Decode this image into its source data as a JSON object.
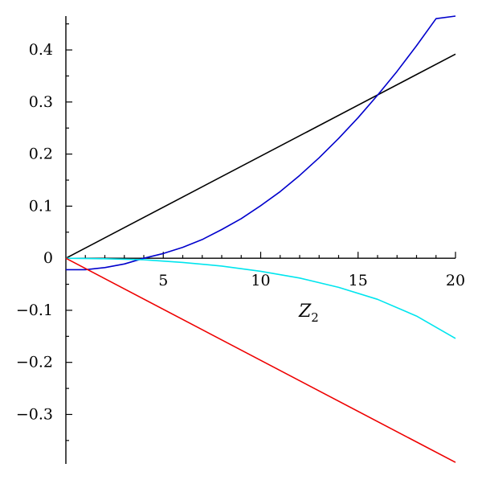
{
  "chart_data": {
    "type": "line",
    "title": "",
    "xlabel": "Z",
    "xlabel_subscript": "2",
    "ylabel": "",
    "xlim": [
      0,
      20
    ],
    "ylim": [
      -0.395,
      0.465
    ],
    "xticks": [
      5,
      10,
      15,
      20
    ],
    "xtick_labels": [
      "5",
      "10",
      "15",
      "20"
    ],
    "yticks": [
      0.4,
      0.3,
      0.2,
      0.1,
      0,
      -0.1,
      -0.2,
      -0.3
    ],
    "ytick_labels": [
      "0.4",
      "0.3",
      "0.2",
      "0.1",
      "0",
      "−0.1",
      "−0.2",
      "−0.3"
    ],
    "grid": false,
    "legend": "none",
    "series": [
      {
        "color": "#000000",
        "x": [
          0,
          20
        ],
        "y": [
          0,
          0.392
        ]
      },
      {
        "color": "#0000cc",
        "x": [
          0,
          1,
          2,
          3,
          4,
          5,
          6,
          7,
          8,
          9,
          10,
          11,
          12,
          13,
          14,
          15,
          16,
          17,
          18,
          19,
          20
        ],
        "y": [
          -0.022,
          -0.022,
          -0.018,
          -0.011,
          0.0,
          0.009,
          0.021,
          0.036,
          0.055,
          0.076,
          0.101,
          0.128,
          0.159,
          0.193,
          0.23,
          0.27,
          0.313,
          0.359,
          0.408,
          0.46,
          0.465
        ]
      },
      {
        "color": "#00e5ee",
        "x": [
          0,
          2,
          4,
          6,
          8,
          10,
          12,
          14,
          16,
          18,
          20
        ],
        "y": [
          0,
          -0.001,
          -0.003,
          -0.008,
          -0.015,
          -0.025,
          -0.038,
          -0.056,
          -0.079,
          -0.111,
          -0.154
        ]
      },
      {
        "color": "#ee0000",
        "x": [
          0,
          20
        ],
        "y": [
          0,
          -0.392
        ]
      }
    ]
  }
}
